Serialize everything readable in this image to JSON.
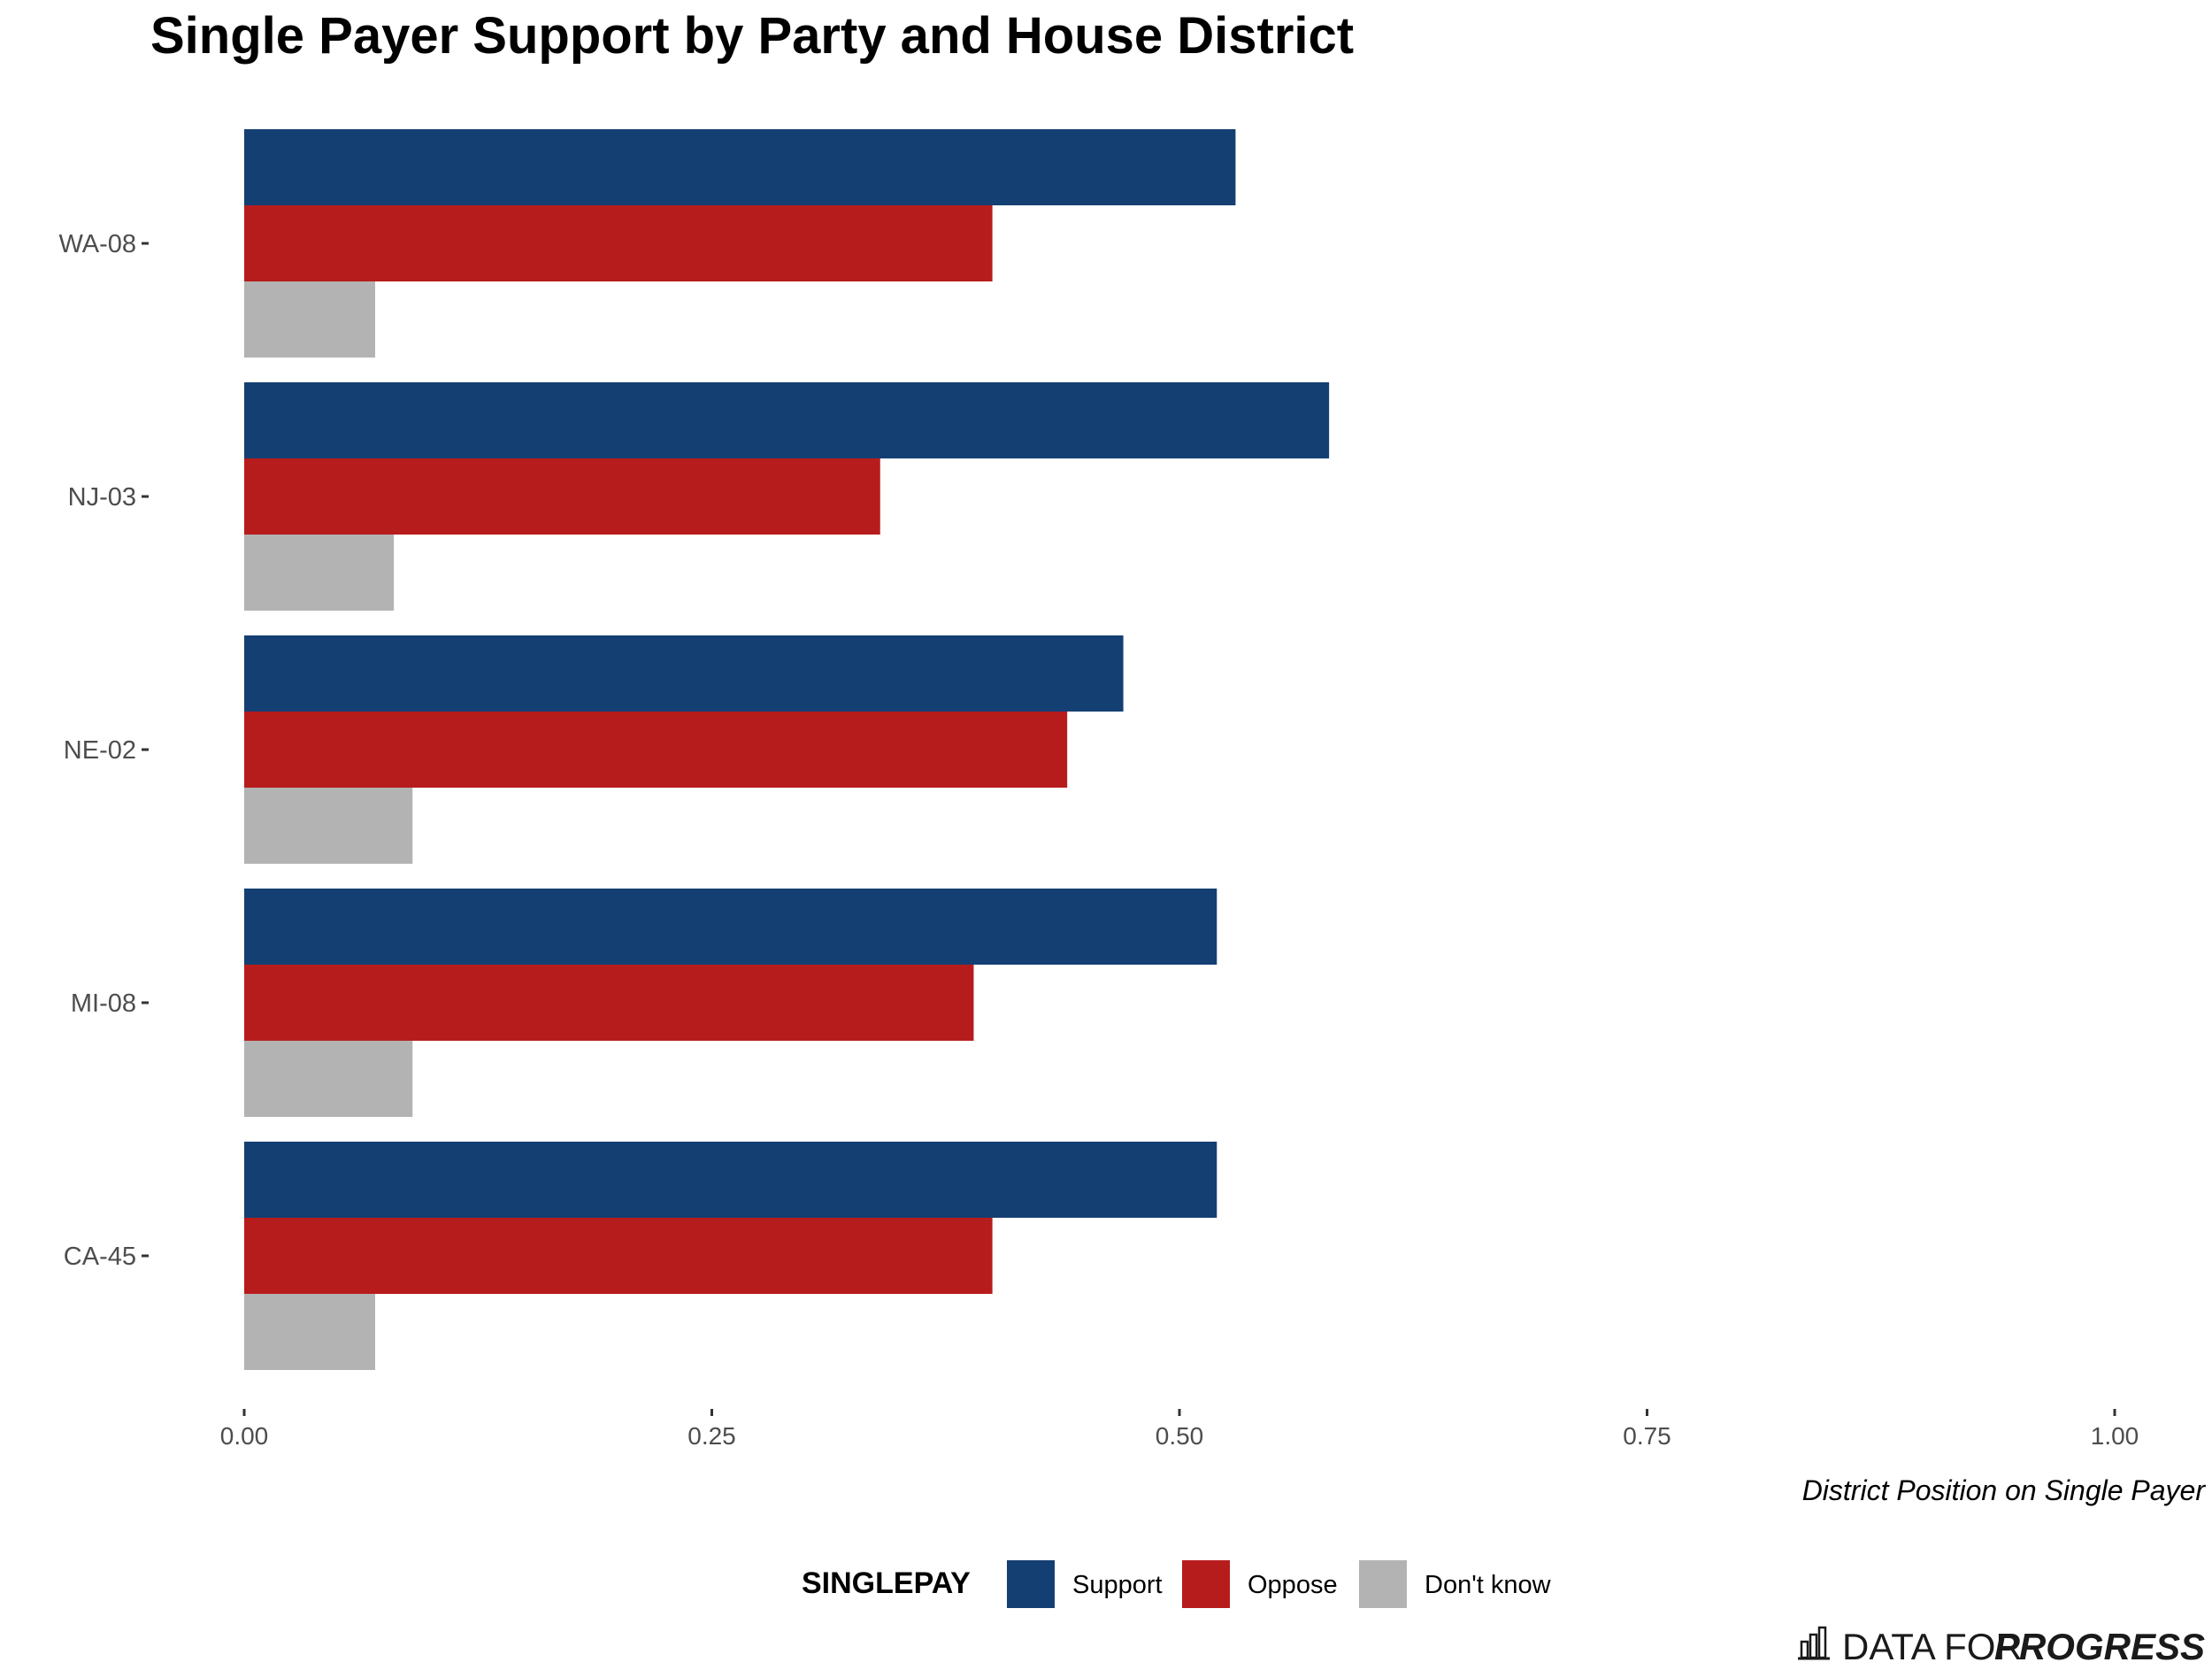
{
  "chart_data": {
    "type": "bar",
    "orientation": "horizontal",
    "title": "Single Payer Support by Party and House District",
    "xlabel": "District Position on Single Payer",
    "ylabel": "",
    "xlim": [
      0,
      1
    ],
    "x_ticks": [
      "0.00",
      "0.25",
      "0.50",
      "0.75",
      "1.00"
    ],
    "x_tick_values": [
      0,
      0.25,
      0.5,
      0.75,
      1.0
    ],
    "categories": [
      "WA-08",
      "NJ-03",
      "NE-02",
      "MI-08",
      "CA-45"
    ],
    "series": [
      {
        "name": "Support",
        "color": "#143f73",
        "values": [
          0.53,
          0.58,
          0.47,
          0.52,
          0.52
        ]
      },
      {
        "name": "Oppose",
        "color": "#b71c1c",
        "values": [
          0.4,
          0.34,
          0.44,
          0.39,
          0.4
        ]
      },
      {
        "name": "Don't know",
        "color": "#b3b3b3",
        "values": [
          0.07,
          0.08,
          0.09,
          0.09,
          0.07
        ]
      }
    ],
    "legend": {
      "title": "SINGLEPAY",
      "position": "bottom"
    },
    "grid": false
  },
  "brand": {
    "light": "DATA FOR",
    "bold": "PROGRESS",
    "icon": "bar-chart-logo-icon"
  }
}
